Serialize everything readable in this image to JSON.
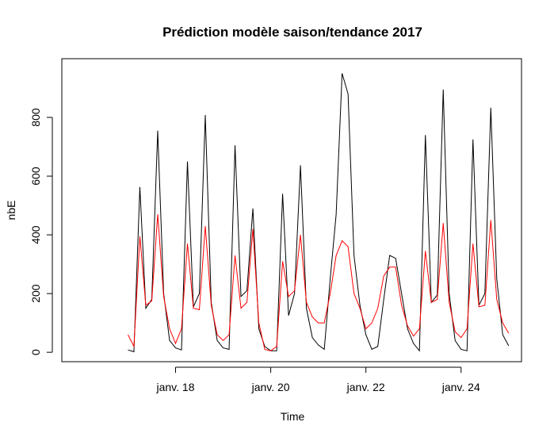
{
  "chart_data": {
    "type": "line",
    "title": "Prédiction modèle saison/tendance 2017",
    "x_label": "Time",
    "y_label": "nbE",
    "x": [
      17,
      17.125,
      17.25,
      17.375,
      17.5,
      17.625,
      17.75,
      17.875,
      18,
      18.125,
      18.25,
      18.375,
      18.5,
      18.625,
      18.75,
      18.875,
      19,
      19.125,
      19.25,
      19.375,
      19.5,
      19.625,
      19.75,
      19.875,
      20,
      20.125,
      20.25,
      20.375,
      20.5,
      20.625,
      20.75,
      20.875,
      21,
      21.125,
      21.25,
      21.375,
      21.5,
      21.625,
      21.75,
      21.875,
      22,
      22.125,
      22.25,
      22.375,
      22.5,
      22.625,
      22.75,
      22.875,
      23,
      23.125,
      23.25,
      23.375,
      23.5,
      23.625,
      23.75,
      23.875,
      24,
      24.125,
      24.25,
      24.375,
      24.5,
      24.625,
      24.75,
      24.875,
      25
    ],
    "series": [
      {
        "color": "#000000",
        "values": [
          8,
          2,
          563,
          150,
          180,
          755,
          200,
          40,
          15,
          8,
          650,
          155,
          200,
          808,
          170,
          40,
          15,
          10,
          705,
          190,
          210,
          490,
          80,
          20,
          5,
          5,
          540,
          125,
          200,
          637,
          150,
          50,
          25,
          10,
          250,
          470,
          950,
          880,
          330,
          160,
          60,
          10,
          20,
          180,
          330,
          320,
          200,
          80,
          30,
          5,
          740,
          170,
          195,
          895,
          200,
          40,
          10,
          5,
          725,
          160,
          200,
          833,
          250,
          60,
          22
        ]
      },
      {
        "color": "#ff0000",
        "values": [
          60,
          20,
          395,
          160,
          175,
          470,
          190,
          80,
          30,
          80,
          370,
          150,
          145,
          430,
          160,
          60,
          40,
          60,
          330,
          150,
          170,
          420,
          100,
          10,
          5,
          20,
          310,
          190,
          210,
          400,
          170,
          120,
          100,
          100,
          200,
          330,
          380,
          360,
          200,
          150,
          80,
          100,
          150,
          260,
          290,
          290,
          160,
          90,
          55,
          80,
          345,
          170,
          180,
          440,
          170,
          70,
          50,
          80,
          370,
          155,
          160,
          450,
          180,
          100,
          65
        ]
      }
    ],
    "xlim": [
      15.61,
      25.27
    ],
    "ylim": [
      -32,
      1000
    ],
    "xticks": [
      {
        "value": 18,
        "label": "janv. 18"
      },
      {
        "value": 20,
        "label": "janv. 20"
      },
      {
        "value": 22,
        "label": "janv. 22"
      },
      {
        "value": 24,
        "label": "janv. 24"
      }
    ],
    "yticks": [
      0,
      200,
      400,
      600,
      800
    ]
  }
}
